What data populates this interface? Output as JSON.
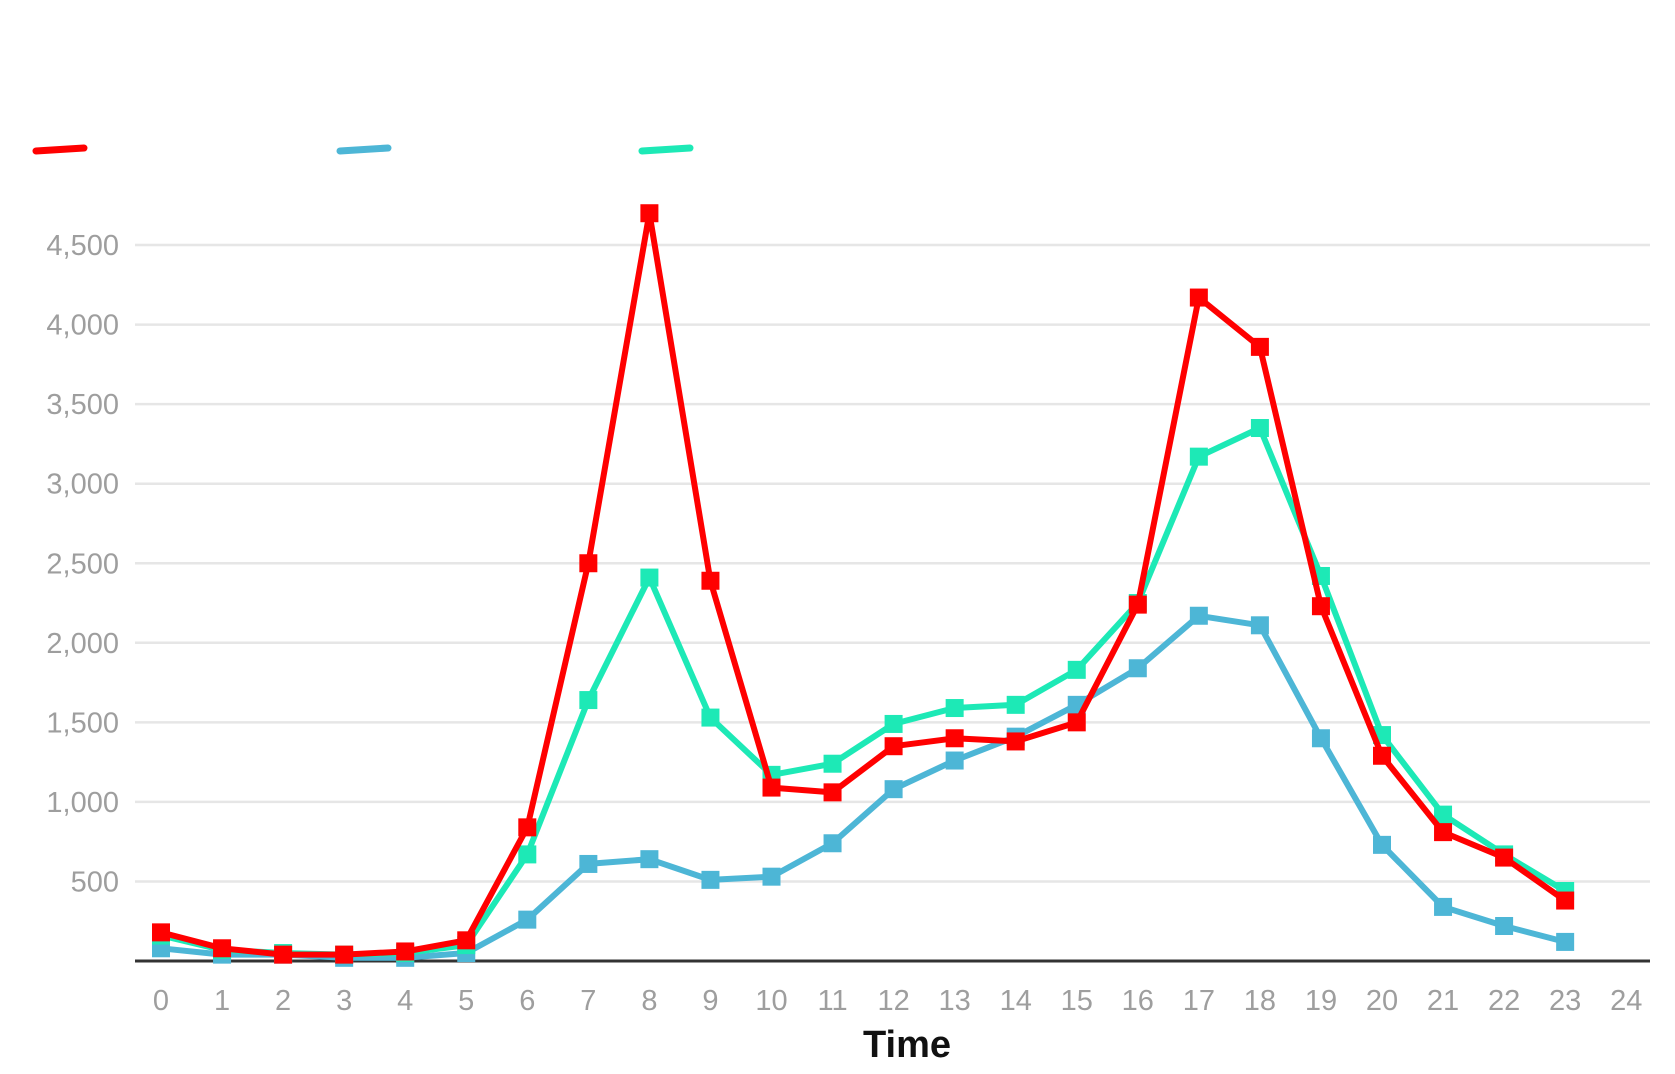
{
  "chart_data": {
    "type": "line",
    "title": "",
    "xlabel": "Time",
    "ylabel": "",
    "x": [
      0,
      1,
      2,
      3,
      4,
      5,
      6,
      7,
      8,
      9,
      10,
      11,
      12,
      13,
      14,
      15,
      16,
      17,
      18,
      19,
      20,
      21,
      22,
      23
    ],
    "x_ticks": [
      "0",
      "1",
      "2",
      "3",
      "4",
      "5",
      "6",
      "7",
      "8",
      "9",
      "10",
      "11",
      "12",
      "13",
      "14",
      "15",
      "16",
      "17",
      "18",
      "19",
      "20",
      "21",
      "22",
      "23",
      "24"
    ],
    "xlim": [
      -0.5,
      24.5
    ],
    "ylim": [
      0,
      4700
    ],
    "y_ticks": [
      500,
      1000,
      1500,
      2000,
      2500,
      3000,
      3500,
      4000,
      4500
    ],
    "y_tick_labels": [
      "500",
      "1,000",
      "1,500",
      "2,000",
      "2,500",
      "3,000",
      "3,500",
      "4,000",
      "4,500"
    ],
    "grid": true,
    "legend_position": "top-left",
    "marker": "square",
    "series": [
      {
        "color": "#4db6d6",
        "values": [
          80,
          40,
          40,
          20,
          20,
          50,
          260,
          610,
          640,
          510,
          530,
          740,
          1080,
          1260,
          1410,
          1610,
          1840,
          2170,
          2110,
          1400,
          730,
          340,
          220,
          120
        ]
      },
      {
        "color": "#1de9b6",
        "values": [
          160,
          70,
          50,
          40,
          50,
          100,
          670,
          1640,
          2410,
          1530,
          1170,
          1240,
          1490,
          1590,
          1610,
          1830,
          2250,
          3170,
          3350,
          2420,
          1420,
          920,
          670,
          440
        ]
      },
      {
        "color": "#ff0000",
        "values": [
          180,
          80,
          40,
          40,
          60,
          130,
          840,
          2500,
          4700,
          2390,
          1090,
          1060,
          1350,
          1400,
          1380,
          1500,
          2240,
          4170,
          3860,
          2230,
          1290,
          810,
          650,
          380
        ]
      }
    ]
  }
}
